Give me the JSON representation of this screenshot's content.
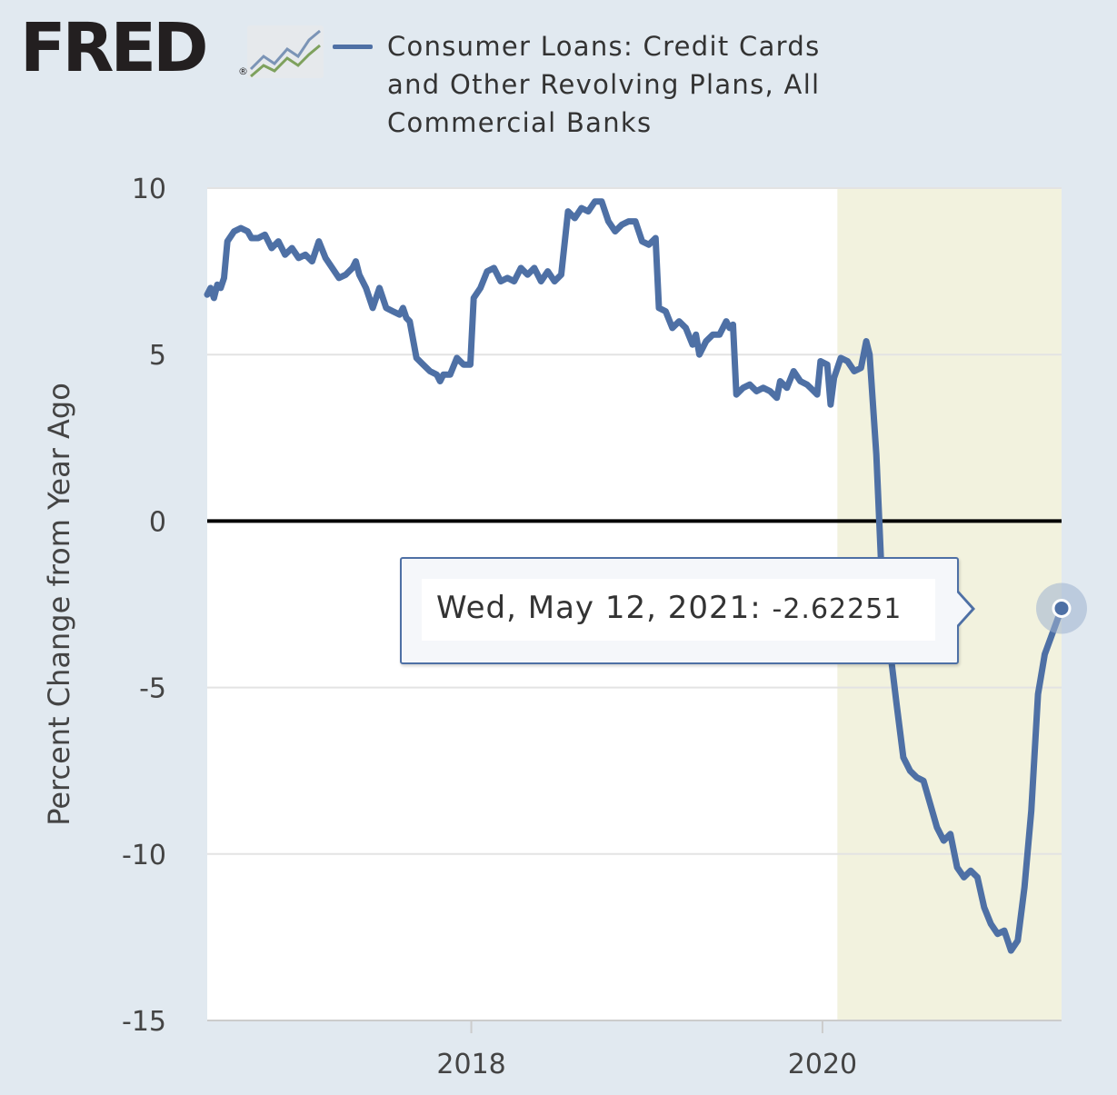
{
  "header": {
    "logo_text": "FRED",
    "logo_reg": "®",
    "logo_icon": "line-chart-icon",
    "series_legend": "Consumer Loans: Credit Cards and Other Revolving Plans, All Commercial Banks"
  },
  "tooltip": {
    "date": "Wed, May 12, 2021:",
    "value": "-2.62251"
  },
  "colors": {
    "background": "#e1e9f0",
    "series_line": "#4e70a5",
    "recession_shading": "#f2f2de",
    "zero_line": "#000000"
  },
  "chart_data": {
    "type": "line",
    "ylabel": "Percent Change from Year Ago",
    "xlabel": "",
    "ylim": [
      -15,
      10
    ],
    "xlim": [
      "2016-07-01",
      "2021-05-12"
    ],
    "yticks": [
      10,
      5,
      0,
      -5,
      -10,
      -15
    ],
    "ytick_labels": [
      "10",
      "5",
      "0",
      "-5",
      "-10",
      "-15"
    ],
    "xticks": [
      "2018-01-01",
      "2020-01-01"
    ],
    "xtick_labels": [
      "2018",
      "2020"
    ],
    "grid": "horizontal",
    "zero_line": true,
    "recession_band": [
      "2020-02-01",
      "2021-05-12"
    ],
    "highlight_point": {
      "date": "2021-05-12",
      "value": -2.62251
    },
    "series": [
      {
        "name": "Consumer Loans: Credit Cards and Other Revolving Plans, All Commercial Banks",
        "points": [
          [
            "2016-07-01",
            6.8
          ],
          [
            "2016-07-08",
            7.0
          ],
          [
            "2016-07-15",
            6.7
          ],
          [
            "2016-07-22",
            7.1
          ],
          [
            "2016-07-29",
            7.0
          ],
          [
            "2016-08-05",
            7.3
          ],
          [
            "2016-08-12",
            8.4
          ],
          [
            "2016-08-26",
            8.7
          ],
          [
            "2016-09-09",
            8.8
          ],
          [
            "2016-09-23",
            8.7
          ],
          [
            "2016-10-01",
            8.5
          ],
          [
            "2016-10-15",
            8.5
          ],
          [
            "2016-10-29",
            8.6
          ],
          [
            "2016-11-12",
            8.2
          ],
          [
            "2016-11-26",
            8.4
          ],
          [
            "2016-12-10",
            8.0
          ],
          [
            "2016-12-24",
            8.2
          ],
          [
            "2017-01-07",
            7.9
          ],
          [
            "2017-01-21",
            8.0
          ],
          [
            "2017-02-04",
            7.8
          ],
          [
            "2017-02-18",
            8.4
          ],
          [
            "2017-03-04",
            7.9
          ],
          [
            "2017-03-18",
            7.6
          ],
          [
            "2017-04-01",
            7.3
          ],
          [
            "2017-04-15",
            7.4
          ],
          [
            "2017-04-29",
            7.6
          ],
          [
            "2017-05-06",
            7.8
          ],
          [
            "2017-05-13",
            7.4
          ],
          [
            "2017-05-27",
            7.0
          ],
          [
            "2017-06-10",
            6.4
          ],
          [
            "2017-06-24",
            7.0
          ],
          [
            "2017-07-08",
            6.4
          ],
          [
            "2017-07-22",
            6.3
          ],
          [
            "2017-08-05",
            6.2
          ],
          [
            "2017-08-12",
            6.4
          ],
          [
            "2017-08-19",
            6.1
          ],
          [
            "2017-08-26",
            6.0
          ],
          [
            "2017-09-09",
            4.9
          ],
          [
            "2017-09-23",
            4.7
          ],
          [
            "2017-10-07",
            4.5
          ],
          [
            "2017-10-21",
            4.4
          ],
          [
            "2017-10-28",
            4.2
          ],
          [
            "2017-11-04",
            4.4
          ],
          [
            "2017-11-18",
            4.4
          ],
          [
            "2017-12-02",
            4.9
          ],
          [
            "2017-12-16",
            4.7
          ],
          [
            "2017-12-30",
            4.7
          ],
          [
            "2018-01-06",
            6.7
          ],
          [
            "2018-01-20",
            7.0
          ],
          [
            "2018-02-03",
            7.5
          ],
          [
            "2018-02-17",
            7.6
          ],
          [
            "2018-03-03",
            7.2
          ],
          [
            "2018-03-17",
            7.3
          ],
          [
            "2018-03-31",
            7.2
          ],
          [
            "2018-04-14",
            7.6
          ],
          [
            "2018-04-28",
            7.4
          ],
          [
            "2018-05-12",
            7.6
          ],
          [
            "2018-05-26",
            7.2
          ],
          [
            "2018-06-09",
            7.5
          ],
          [
            "2018-06-23",
            7.2
          ],
          [
            "2018-07-07",
            7.4
          ],
          [
            "2018-07-21",
            9.3
          ],
          [
            "2018-08-04",
            9.1
          ],
          [
            "2018-08-18",
            9.4
          ],
          [
            "2018-09-01",
            9.3
          ],
          [
            "2018-09-15",
            9.6
          ],
          [
            "2018-09-29",
            9.6
          ],
          [
            "2018-10-13",
            9.0
          ],
          [
            "2018-10-27",
            8.7
          ],
          [
            "2018-11-10",
            8.9
          ],
          [
            "2018-11-24",
            9.0
          ],
          [
            "2018-12-08",
            9.0
          ],
          [
            "2018-12-22",
            8.4
          ],
          [
            "2019-01-05",
            8.3
          ],
          [
            "2019-01-19",
            8.5
          ],
          [
            "2019-01-26",
            6.4
          ],
          [
            "2019-02-09",
            6.3
          ],
          [
            "2019-02-23",
            5.8
          ],
          [
            "2019-03-09",
            6.0
          ],
          [
            "2019-03-23",
            5.8
          ],
          [
            "2019-04-06",
            5.3
          ],
          [
            "2019-04-13",
            5.6
          ],
          [
            "2019-04-20",
            5.0
          ],
          [
            "2019-05-04",
            5.4
          ],
          [
            "2019-05-18",
            5.6
          ],
          [
            "2019-06-01",
            5.6
          ],
          [
            "2019-06-15",
            6.0
          ],
          [
            "2019-06-22",
            5.8
          ],
          [
            "2019-06-29",
            5.9
          ],
          [
            "2019-07-06",
            3.8
          ],
          [
            "2019-07-20",
            4.0
          ],
          [
            "2019-08-03",
            4.1
          ],
          [
            "2019-08-17",
            3.9
          ],
          [
            "2019-08-31",
            4.0
          ],
          [
            "2019-09-14",
            3.9
          ],
          [
            "2019-09-28",
            3.7
          ],
          [
            "2019-10-05",
            4.2
          ],
          [
            "2019-10-19",
            4.0
          ],
          [
            "2019-11-02",
            4.5
          ],
          [
            "2019-11-16",
            4.2
          ],
          [
            "2019-11-30",
            4.1
          ],
          [
            "2019-12-07",
            4.0
          ],
          [
            "2019-12-21",
            3.8
          ],
          [
            "2019-12-28",
            4.8
          ],
          [
            "2020-01-11",
            4.7
          ],
          [
            "2020-01-18",
            3.5
          ],
          [
            "2020-01-25",
            4.3
          ],
          [
            "2020-02-08",
            4.9
          ],
          [
            "2020-02-22",
            4.8
          ],
          [
            "2020-03-07",
            4.5
          ],
          [
            "2020-03-21",
            4.6
          ],
          [
            "2020-04-01",
            5.4
          ],
          [
            "2020-04-08",
            5.0
          ],
          [
            "2020-04-22",
            2.0
          ],
          [
            "2020-05-06",
            -2.6
          ],
          [
            "2020-05-20",
            -3.8
          ],
          [
            "2020-06-03",
            -5.5
          ],
          [
            "2020-06-17",
            -7.1
          ],
          [
            "2020-07-01",
            -7.5
          ],
          [
            "2020-07-15",
            -7.7
          ],
          [
            "2020-07-29",
            -7.8
          ],
          [
            "2020-08-12",
            -8.5
          ],
          [
            "2020-08-26",
            -9.2
          ],
          [
            "2020-09-09",
            -9.6
          ],
          [
            "2020-09-23",
            -9.4
          ],
          [
            "2020-10-07",
            -10.4
          ],
          [
            "2020-10-21",
            -10.7
          ],
          [
            "2020-11-04",
            -10.5
          ],
          [
            "2020-11-18",
            -10.7
          ],
          [
            "2020-12-02",
            -11.6
          ],
          [
            "2020-12-16",
            -12.1
          ],
          [
            "2020-12-30",
            -12.4
          ],
          [
            "2021-01-13",
            -12.3
          ],
          [
            "2021-01-27",
            -12.9
          ],
          [
            "2021-02-10",
            -12.6
          ],
          [
            "2021-02-24",
            -11.0
          ],
          [
            "2021-03-10",
            -8.7
          ],
          [
            "2021-03-24",
            -5.2
          ],
          [
            "2021-04-07",
            -4.0
          ],
          [
            "2021-05-12",
            -2.62251
          ]
        ]
      }
    ]
  }
}
